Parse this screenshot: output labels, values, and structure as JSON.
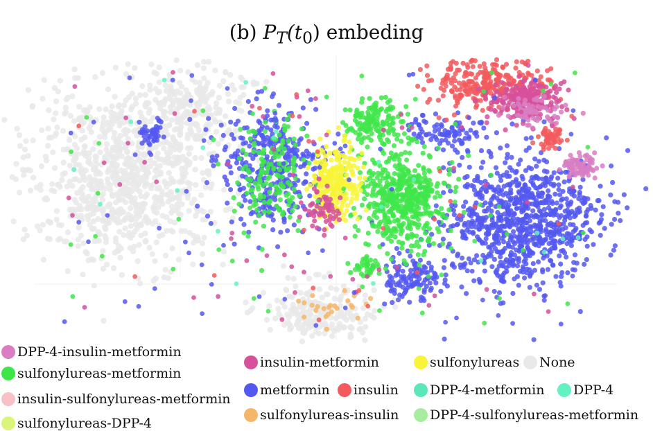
{
  "chart_data": {
    "type": "scatter",
    "title_prefix": "(b) ",
    "title_math": "P",
    "title_sub": "T",
    "title_arg_open": "(t",
    "title_arg_sub": "0",
    "title_arg_close": ")",
    "title_suffix": " embeding",
    "xlabel": "",
    "ylabel": "",
    "grid": true,
    "legend_placement": "bottom",
    "series": [
      {
        "name": "DPP-4-insulin-metformin",
        "color": "#d97ec3"
      },
      {
        "name": "sulfonylureas-metformin",
        "color": "#3fe64a"
      },
      {
        "name": "insulin-sulfonylureas-metformin",
        "color": "#f7c1c6"
      },
      {
        "name": "sulfonylureas-DPP-4",
        "color": "#d9f57a"
      },
      {
        "name": "insulin-metformin",
        "color": "#d6509c"
      },
      {
        "name": "metformin",
        "color": "#5358f0"
      },
      {
        "name": "sulfonylureas-insulin",
        "color": "#f6b66a"
      },
      {
        "name": "sulfonylureas",
        "color": "#f8f43a"
      },
      {
        "name": "insulin",
        "color": "#f25a5e"
      },
      {
        "name": "None",
        "color": "#e9e9e9"
      },
      {
        "name": "DPP-4-metformin",
        "color": "#5be8b6"
      },
      {
        "name": "DPP-4",
        "color": "#62f2c2"
      },
      {
        "name": "DPP-4-sulfonylureas-metformin",
        "color": "#a8eca0"
      }
    ],
    "clusters": [
      {
        "series": "None",
        "cx": 180,
        "cy": 250,
        "rx": 140,
        "ry": 130,
        "n": 900
      },
      {
        "series": "None",
        "cx": 280,
        "cy": 150,
        "rx": 80,
        "ry": 60,
        "n": 200
      },
      {
        "series": "None",
        "cx": 460,
        "cy": 450,
        "rx": 80,
        "ry": 45,
        "n": 220
      },
      {
        "series": "metformin",
        "cx": 390,
        "cy": 240,
        "rx": 70,
        "ry": 90,
        "n": 380
      },
      {
        "series": "metformin",
        "cx": 215,
        "cy": 195,
        "rx": 25,
        "ry": 22,
        "n": 40
      },
      {
        "series": "metformin",
        "cx": 750,
        "cy": 320,
        "rx": 110,
        "ry": 95,
        "n": 900
      },
      {
        "series": "metformin",
        "cx": 595,
        "cy": 400,
        "rx": 40,
        "ry": 35,
        "n": 120
      },
      {
        "series": "metformin",
        "cx": 650,
        "cy": 190,
        "rx": 60,
        "ry": 20,
        "n": 90
      },
      {
        "series": "sulfonylureas-metformin",
        "cx": 390,
        "cy": 250,
        "rx": 60,
        "ry": 85,
        "n": 160
      },
      {
        "series": "sulfonylureas-metformin",
        "cx": 580,
        "cy": 285,
        "rx": 60,
        "ry": 70,
        "n": 520
      },
      {
        "series": "sulfonylureas-metformin",
        "cx": 540,
        "cy": 175,
        "rx": 40,
        "ry": 30,
        "n": 140
      },
      {
        "series": "sulfonylureas-metformin",
        "cx": 530,
        "cy": 385,
        "rx": 22,
        "ry": 14,
        "n": 40
      },
      {
        "series": "sulfonylureas",
        "cx": 485,
        "cy": 265,
        "rx": 35,
        "ry": 55,
        "n": 260
      },
      {
        "series": "insulin",
        "cx": 700,
        "cy": 120,
        "rx": 90,
        "ry": 35,
        "n": 300
      },
      {
        "series": "insulin",
        "cx": 795,
        "cy": 200,
        "rx": 22,
        "ry": 16,
        "n": 50
      },
      {
        "series": "insulin-metformin",
        "cx": 760,
        "cy": 145,
        "rx": 55,
        "ry": 30,
        "n": 220
      },
      {
        "series": "insulin-metformin",
        "cx": 470,
        "cy": 300,
        "rx": 25,
        "ry": 30,
        "n": 60
      },
      {
        "series": "DPP-4-insulin-metformin",
        "cx": 835,
        "cy": 240,
        "rx": 25,
        "ry": 16,
        "n": 80
      },
      {
        "series": "DPP-4-insulin-metformin",
        "cx": 770,
        "cy": 160,
        "rx": 40,
        "ry": 20,
        "n": 70
      },
      {
        "series": "sulfonylureas-insulin",
        "cx": 480,
        "cy": 440,
        "rx": 60,
        "ry": 25,
        "n": 25
      }
    ],
    "scatter_sprinkles": [
      {
        "series": "insulin-metformin",
        "n": 60
      },
      {
        "series": "metformin",
        "n": 70
      },
      {
        "series": "sulfonylureas-metformin",
        "n": 50
      },
      {
        "series": "DPP-4",
        "n": 20
      },
      {
        "series": "insulin",
        "n": 25
      }
    ]
  }
}
